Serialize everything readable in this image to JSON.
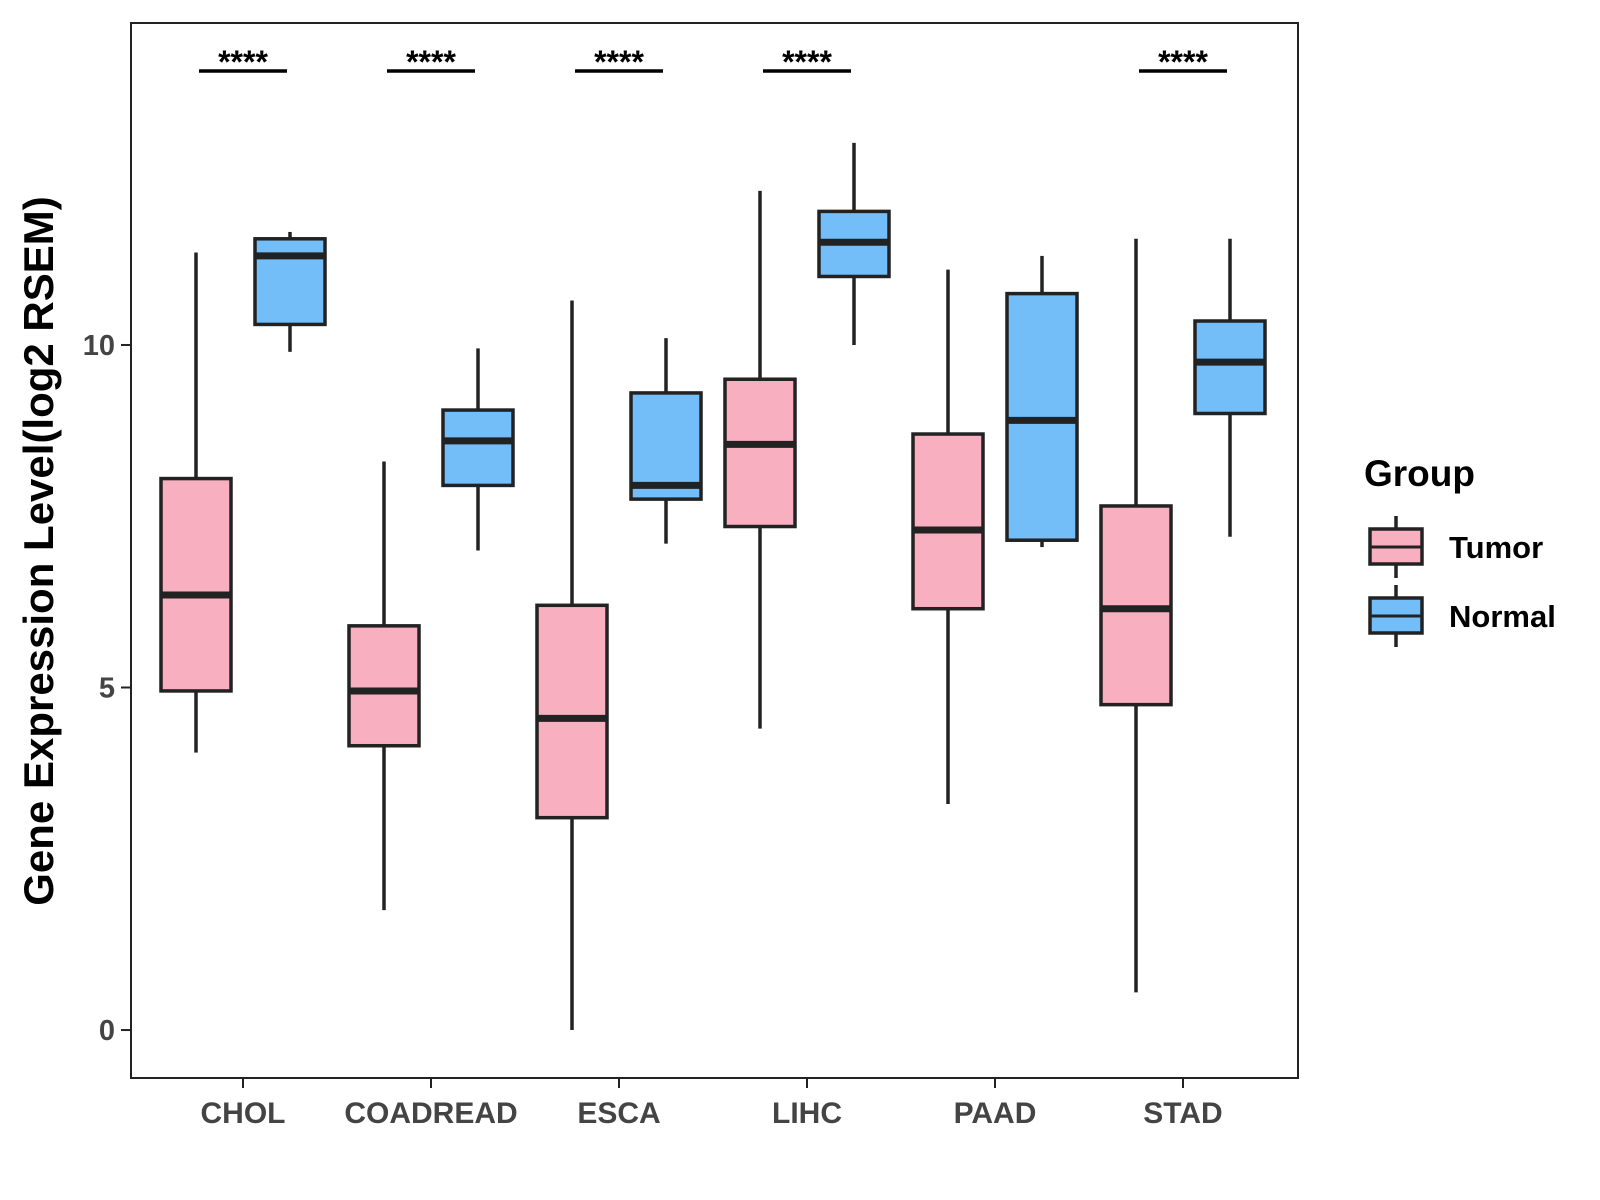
{
  "chart_data": {
    "type": "boxplot",
    "title": "",
    "xlabel": "",
    "ylabel": "Gene Expression Level(log2 RSEM)",
    "ylim": [
      -0.7,
      14.7
    ],
    "yticks": [
      0,
      5,
      10
    ],
    "categories": [
      "CHOL",
      "COADREAD",
      "ESCA",
      "LIHC",
      "PAAD",
      "STAD"
    ],
    "grid": false,
    "legend": {
      "title": "Group",
      "position": "right",
      "entries": [
        {
          "name": "Tumor",
          "color": "#F8AFC0"
        },
        {
          "name": "Normal",
          "color": "#73BEF8"
        }
      ]
    },
    "series": [
      {
        "name": "Tumor",
        "color": "#F8AFC0",
        "boxes": [
          {
            "category": "CHOL",
            "min": 4.05,
            "q1": 4.95,
            "median": 6.35,
            "q3": 8.05,
            "max": 11.35
          },
          {
            "category": "COADREAD",
            "min": 1.75,
            "q1": 4.15,
            "median": 4.95,
            "q3": 5.9,
            "max": 8.3
          },
          {
            "category": "ESCA",
            "min": 0.0,
            "q1": 3.1,
            "median": 4.55,
            "q3": 6.2,
            "max": 10.65
          },
          {
            "category": "LIHC",
            "min": 4.4,
            "q1": 7.35,
            "median": 8.55,
            "q3": 9.5,
            "max": 12.25
          },
          {
            "category": "PAAD",
            "min": 3.3,
            "q1": 6.15,
            "median": 7.3,
            "q3": 8.7,
            "max": 11.1
          },
          {
            "category": "STAD",
            "min": 0.55,
            "q1": 4.75,
            "median": 6.15,
            "q3": 7.65,
            "max": 11.55
          }
        ]
      },
      {
        "name": "Normal",
        "color": "#73BEF8",
        "boxes": [
          {
            "category": "CHOL",
            "min": 9.9,
            "q1": 10.3,
            "median": 11.3,
            "q3": 11.55,
            "max": 11.65
          },
          {
            "category": "COADREAD",
            "min": 7.0,
            "q1": 7.95,
            "median": 8.6,
            "q3": 9.05,
            "max": 9.95
          },
          {
            "category": "ESCA",
            "min": 7.1,
            "q1": 7.75,
            "median": 7.95,
            "q3": 9.3,
            "max": 10.1
          },
          {
            "category": "LIHC",
            "min": 10.0,
            "q1": 11.0,
            "median": 11.5,
            "q3": 11.95,
            "max": 12.95
          },
          {
            "category": "PAAD",
            "min": 7.05,
            "q1": 7.15,
            "median": 8.9,
            "q3": 10.75,
            "max": 11.3
          },
          {
            "category": "STAD",
            "min": 7.2,
            "q1": 9.0,
            "median": 9.75,
            "q3": 10.35,
            "max": 11.55
          }
        ]
      }
    ],
    "significance": [
      {
        "category": "CHOL",
        "label": "****"
      },
      {
        "category": "COADREAD",
        "label": "****"
      },
      {
        "category": "ESCA",
        "label": "****"
      },
      {
        "category": "LIHC",
        "label": "****"
      },
      {
        "category": "PAAD",
        "label": ""
      },
      {
        "category": "STAD",
        "label": "****"
      }
    ],
    "significance_level": 14.0
  }
}
